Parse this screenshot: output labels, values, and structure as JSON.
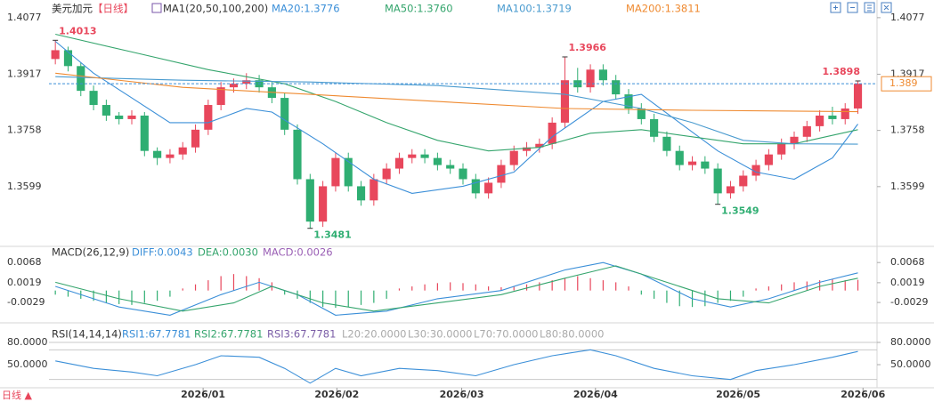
{
  "chart_data": [
    {
      "type": "candlestick",
      "title": "美元加元",
      "subtitle": "【日线】",
      "indicator": "MA1(20,50,100,200)",
      "up_color": "#e8475c",
      "down_color": "#2fae72",
      "xlim": [
        -0.5,
        64.5
      ],
      "ylim": [
        1.3435,
        1.4127
      ],
      "yticks": [
        1.4077,
        1.3917,
        1.3758,
        1.3599
      ],
      "candles": [
        [
          1.396,
          1.4013,
          1.3945,
          1.3985
        ],
        [
          1.3985,
          1.3995,
          1.3925,
          1.394
        ],
        [
          1.394,
          1.395,
          1.3855,
          1.387
        ],
        [
          1.387,
          1.3885,
          1.3815,
          1.383
        ],
        [
          1.383,
          1.3845,
          1.3785,
          1.38
        ],
        [
          1.38,
          1.381,
          1.3775,
          1.379
        ],
        [
          1.379,
          1.3815,
          1.3775,
          1.38
        ],
        [
          1.38,
          1.381,
          1.3685,
          1.37
        ],
        [
          1.37,
          1.371,
          1.366,
          1.368
        ],
        [
          1.368,
          1.3705,
          1.3665,
          1.369
        ],
        [
          1.369,
          1.3725,
          1.3675,
          1.371
        ],
        [
          1.371,
          1.3775,
          1.3695,
          1.376
        ],
        [
          1.376,
          1.3845,
          1.3745,
          1.383
        ],
        [
          1.383,
          1.3895,
          1.3815,
          1.388
        ],
        [
          1.388,
          1.3905,
          1.3865,
          1.389
        ],
        [
          1.389,
          1.392,
          1.3875,
          1.39
        ],
        [
          1.39,
          1.3915,
          1.3865,
          1.388
        ],
        [
          1.388,
          1.3895,
          1.3835,
          1.385
        ],
        [
          1.385,
          1.3865,
          1.3745,
          1.376
        ],
        [
          1.376,
          1.3775,
          1.3605,
          1.362
        ],
        [
          1.362,
          1.3635,
          1.3481,
          1.35
        ],
        [
          1.35,
          1.3615,
          1.3485,
          1.36
        ],
        [
          1.36,
          1.3695,
          1.3585,
          1.368
        ],
        [
          1.368,
          1.3695,
          1.3585,
          1.36
        ],
        [
          1.36,
          1.3615,
          1.3545,
          1.356
        ],
        [
          1.356,
          1.3635,
          1.3545,
          1.362
        ],
        [
          1.362,
          1.3665,
          1.3605,
          1.365
        ],
        [
          1.365,
          1.3695,
          1.3635,
          1.368
        ],
        [
          1.368,
          1.3705,
          1.3665,
          1.369
        ],
        [
          1.369,
          1.3705,
          1.3665,
          1.368
        ],
        [
          1.368,
          1.3695,
          1.3645,
          1.366
        ],
        [
          1.366,
          1.3675,
          1.3635,
          1.365
        ],
        [
          1.365,
          1.3665,
          1.3605,
          1.362
        ],
        [
          1.362,
          1.3635,
          1.3565,
          1.358
        ],
        [
          1.358,
          1.3625,
          1.3565,
          1.361
        ],
        [
          1.361,
          1.3675,
          1.3595,
          1.366
        ],
        [
          1.366,
          1.3715,
          1.3645,
          1.37
        ],
        [
          1.37,
          1.3725,
          1.3685,
          1.371
        ],
        [
          1.371,
          1.3735,
          1.3695,
          1.372
        ],
        [
          1.372,
          1.3795,
          1.3705,
          1.378
        ],
        [
          1.378,
          1.3966,
          1.3765,
          1.39
        ],
        [
          1.39,
          1.3935,
          1.3865,
          1.388
        ],
        [
          1.388,
          1.3945,
          1.3865,
          1.393
        ],
        [
          1.393,
          1.3945,
          1.3885,
          1.39
        ],
        [
          1.39,
          1.3915,
          1.3845,
          1.386
        ],
        [
          1.386,
          1.3875,
          1.3805,
          1.382
        ],
        [
          1.382,
          1.3835,
          1.3775,
          1.379
        ],
        [
          1.379,
          1.3805,
          1.3725,
          1.374
        ],
        [
          1.374,
          1.3755,
          1.3685,
          1.37
        ],
        [
          1.37,
          1.3715,
          1.3645,
          1.366
        ],
        [
          1.366,
          1.3685,
          1.3645,
          1.367
        ],
        [
          1.367,
          1.3685,
          1.3635,
          1.365
        ],
        [
          1.365,
          1.3665,
          1.3549,
          1.358
        ],
        [
          1.358,
          1.3615,
          1.3565,
          1.36
        ],
        [
          1.36,
          1.3645,
          1.3585,
          1.363
        ],
        [
          1.363,
          1.3675,
          1.3615,
          1.366
        ],
        [
          1.366,
          1.3705,
          1.3645,
          1.369
        ],
        [
          1.369,
          1.3735,
          1.3675,
          1.372
        ],
        [
          1.372,
          1.3755,
          1.3705,
          1.374
        ],
        [
          1.374,
          1.3785,
          1.3725,
          1.377
        ],
        [
          1.377,
          1.3815,
          1.3755,
          1.38
        ],
        [
          1.38,
          1.3825,
          1.3775,
          1.379
        ],
        [
          1.379,
          1.3835,
          1.3775,
          1.382
        ],
        [
          1.382,
          1.3898,
          1.3805,
          1.389
        ]
      ],
      "series": [
        {
          "name": "MA20:1.3776",
          "color": "#3b8fd8",
          "x": [
            0,
            3,
            6,
            9,
            12,
            15,
            17,
            21,
            25,
            28,
            32,
            36,
            39,
            43,
            46,
            49,
            52,
            55,
            58,
            61,
            63
          ],
          "values": [
            1.401,
            1.392,
            1.385,
            1.378,
            1.378,
            1.382,
            1.381,
            1.372,
            1.362,
            1.358,
            1.36,
            1.364,
            1.374,
            1.384,
            1.386,
            1.378,
            1.37,
            1.364,
            1.362,
            1.368,
            1.3776
          ]
        },
        {
          "name": "MA50:1.3760",
          "color": "#35a56d",
          "x": [
            0,
            6,
            12,
            18,
            22,
            26,
            30,
            34,
            38,
            42,
            46,
            50,
            54,
            58,
            63
          ],
          "values": [
            1.403,
            1.398,
            1.393,
            1.389,
            1.384,
            1.378,
            1.373,
            1.37,
            1.371,
            1.375,
            1.376,
            1.374,
            1.372,
            1.372,
            1.376
          ]
        },
        {
          "name": "MA100:1.3719",
          "color": "#4a9bcf",
          "x": [
            0,
            10,
            20,
            30,
            40,
            46,
            50,
            54,
            58,
            63
          ],
          "values": [
            1.391,
            1.39,
            1.3895,
            1.3885,
            1.386,
            1.382,
            1.378,
            1.373,
            1.372,
            1.3719
          ]
        },
        {
          "name": "MA200:1.3811",
          "color": "#ef8a30",
          "x": [
            0,
            10,
            20,
            30,
            40,
            50,
            63
          ],
          "values": [
            1.392,
            1.388,
            1.386,
            1.384,
            1.382,
            1.3815,
            1.3811
          ]
        }
      ],
      "annotations": [
        {
          "x": 0,
          "value": 1.4013
        },
        {
          "x": 20,
          "value": 1.3481
        },
        {
          "x": 40,
          "value": 1.3966
        },
        {
          "x": 52,
          "value": 1.3549
        },
        {
          "x": 63,
          "value": 1.3898
        }
      ],
      "last_price": 1.389,
      "last_price_color": "#ef8a30",
      "price_line_color": "#3b8fd8"
    },
    {
      "type": "macd",
      "title": "MACD(26,12,9)",
      "hist_name": "MACD:0.0026",
      "xlim": [
        -0.5,
        64.5
      ],
      "ylim": [
        -0.0072,
        0.009
      ],
      "yticks": [
        0.0068,
        0.0019,
        -0.0029
      ],
      "up_color": "#e8475c",
      "down_color": "#2fae72",
      "values": [
        -0.001,
        -0.0015,
        -0.002,
        -0.0025,
        -0.003,
        -0.0033,
        -0.0035,
        -0.003,
        -0.0025,
        -0.0015,
        0.0005,
        0.0015,
        0.0025,
        0.0035,
        0.004,
        0.0035,
        0.003,
        0.002,
        -0.001,
        -0.002,
        -0.003,
        -0.004,
        -0.0042,
        -0.004,
        -0.0035,
        -0.003,
        -0.002,
        0.0005,
        0.001,
        0.0015,
        0.0018,
        0.002,
        0.0018,
        0.0015,
        0.001,
        0.0008,
        0.001,
        0.0015,
        0.002,
        0.0025,
        0.003,
        0.0035,
        0.003,
        0.0025,
        0.002,
        0.001,
        -0.001,
        -0.002,
        -0.003,
        -0.0038,
        -0.004,
        -0.0038,
        -0.003,
        -0.0025,
        -0.0015,
        0.0005,
        0.001,
        0.0015,
        0.002,
        0.0022,
        0.0025,
        0.0028,
        0.0025,
        0.0026
      ],
      "series": [
        {
          "name": "DIFF:0.0043",
          "color": "#3b8fd8",
          "x": [
            0,
            5,
            9,
            13,
            16,
            19,
            22,
            26,
            30,
            35,
            40,
            43,
            46,
            50,
            53,
            56,
            60,
            63
          ],
          "values": [
            0.001,
            -0.004,
            -0.006,
            -0.001,
            0.002,
            -0.001,
            -0.006,
            -0.005,
            -0.002,
            0,
            0.005,
            0.0068,
            0.004,
            -0.002,
            -0.004,
            -0.002,
            0.002,
            0.0043
          ]
        },
        {
          "name": "DEA:0.0030",
          "color": "#35a56d",
          "x": [
            0,
            5,
            10,
            14,
            17,
            21,
            25,
            30,
            35,
            40,
            44,
            48,
            52,
            56,
            60,
            63
          ],
          "values": [
            0.002,
            -0.002,
            -0.005,
            -0.003,
            0.001,
            -0.003,
            -0.005,
            -0.003,
            -0.001,
            0.003,
            0.006,
            0.002,
            -0.002,
            -0.003,
            0.001,
            0.003
          ]
        }
      ]
    },
    {
      "type": "line",
      "title": "RSI(14,14,14)",
      "xlim": [
        -0.5,
        64.5
      ],
      "ylim": [
        20,
        92
      ],
      "yticks": [
        {
          "value": 80,
          "label": "80.0000"
        },
        {
          "value": 50,
          "label": "50.0000"
        }
      ],
      "xticks": [
        {
          "value": 11.6,
          "label": "2026/01"
        },
        {
          "value": 22.1,
          "label": "2026/02"
        },
        {
          "value": 31.9,
          "label": "2026/03"
        },
        {
          "value": 42.4,
          "label": "2026/04"
        },
        {
          "value": 53.6,
          "label": "2026/05"
        },
        {
          "value": 63.4,
          "label": "2026/06"
        }
      ],
      "series": [
        {
          "name": "RSI1:67.7781",
          "color": "#3b8fd8",
          "x": [
            0,
            3,
            6,
            8,
            11,
            13,
            16,
            18,
            20,
            22,
            24,
            27,
            30,
            33,
            36,
            39,
            42,
            44,
            47,
            50,
            53,
            55,
            58,
            61,
            63
          ],
          "values": [
            55,
            45,
            40,
            35,
            50,
            62,
            60,
            45,
            25,
            45,
            35,
            45,
            42,
            35,
            50,
            62,
            70,
            62,
            45,
            35,
            30,
            42,
            50,
            60,
            67.7781
          ]
        }
      ],
      "legend_texts": [
        "RSI2:67.7781",
        "RSI3:67.7781"
      ],
      "levels": [
        {
          "value": 20,
          "label": "L20:20.0000"
        },
        {
          "value": 30,
          "label": "L30:30.0000"
        },
        {
          "value": 70,
          "label": "L70:70.0000"
        },
        {
          "value": 80,
          "label": "L80:80.0000"
        }
      ],
      "level_color": "#c8c8c8"
    }
  ],
  "footer": "日线 ▲"
}
